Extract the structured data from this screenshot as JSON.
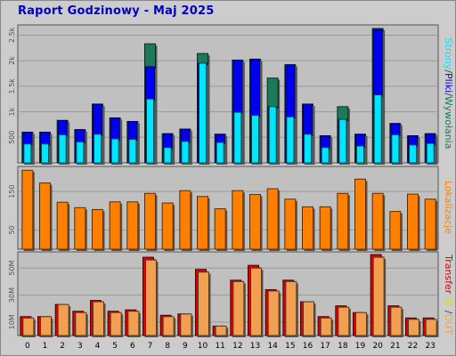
{
  "title": "Raport Godzinowy -  Maj 2025",
  "colors": {
    "pages": "#1a7a5a",
    "files": "#0000ee",
    "hits": "#00e5ff",
    "sites": "#ff8000",
    "in": "#dd0000",
    "out": "#f0a050",
    "panel_bg": "#c0c0c0",
    "frame_bg": "#cccccc"
  },
  "chart_data": [
    {
      "type": "bar",
      "panel": "hits",
      "categories": [
        "0",
        "1",
        "2",
        "3",
        "4",
        "5",
        "6",
        "7",
        "8",
        "9",
        "10",
        "11",
        "12",
        "13",
        "14",
        "15",
        "16",
        "17",
        "18",
        "19",
        "20",
        "21",
        "22",
        "23"
      ],
      "ylim": [
        0,
        2700
      ],
      "yticks": [
        "500",
        "1k",
        "1.5k",
        "2k",
        "2.5k"
      ],
      "ytick_values": [
        500,
        1000,
        1500,
        2000,
        2500
      ],
      "ylabel_parts": [
        "Strony",
        "/",
        "Pliki",
        "/",
        "Wywołania"
      ],
      "series": [
        {
          "name": "Strony",
          "values": [
            600,
            600,
            830,
            650,
            1150,
            880,
            810,
            2330,
            570,
            660,
            2140,
            560,
            2010,
            2030,
            1660,
            1920,
            1150,
            530,
            1100,
            560,
            2630,
            770,
            530,
            570
          ]
        },
        {
          "name": "Pliki",
          "values": [
            600,
            600,
            830,
            650,
            1150,
            880,
            810,
            1880,
            570,
            660,
            1950,
            560,
            2010,
            2030,
            1100,
            1920,
            1150,
            530,
            850,
            560,
            2610,
            770,
            530,
            570
          ]
        },
        {
          "name": "Wywołania",
          "values": [
            370,
            370,
            550,
            410,
            560,
            470,
            460,
            1250,
            300,
            420,
            1950,
            400,
            990,
            930,
            1100,
            900,
            560,
            300,
            850,
            330,
            1330,
            550,
            350,
            380
          ]
        }
      ]
    },
    {
      "type": "bar",
      "panel": "sites",
      "categories": [
        "0",
        "1",
        "2",
        "3",
        "4",
        "5",
        "6",
        "7",
        "8",
        "9",
        "10",
        "11",
        "12",
        "13",
        "14",
        "15",
        "16",
        "17",
        "18",
        "19",
        "20",
        "21",
        "22",
        "23"
      ],
      "ylim": [
        0,
        215
      ],
      "yticks": [
        "50",
        "150"
      ],
      "ytick_values": [
        50,
        150
      ],
      "ylabel": "Lokalizacje",
      "series": [
        {
          "name": "Lokalizacje",
          "values": [
            205,
            172,
            122,
            108,
            103,
            123,
            123,
            145,
            120,
            152,
            137,
            105,
            152,
            142,
            157,
            130,
            110,
            110,
            145,
            182,
            145,
            98,
            143,
            130
          ]
        }
      ]
    },
    {
      "type": "bar",
      "panel": "transfer",
      "categories": [
        "0",
        "1",
        "2",
        "3",
        "4",
        "5",
        "6",
        "7",
        "8",
        "9",
        "10",
        "11",
        "12",
        "13",
        "14",
        "15",
        "16",
        "17",
        "18",
        "19",
        "20",
        "21",
        "22",
        "23"
      ],
      "ylim": [
        0,
        62
      ],
      "yticks": [
        "10M",
        "30M",
        "50M"
      ],
      "ytick_values": [
        10,
        30,
        50
      ],
      "ylabel_parts": [
        "Transfer",
        " IN",
        " /",
        "OUT"
      ],
      "series": [
        {
          "name": "IN",
          "values": [
            14,
            14,
            23,
            18,
            26,
            18,
            19,
            58,
            15,
            16,
            49,
            7,
            41,
            52,
            34,
            41,
            25,
            14,
            22,
            17,
            60,
            22,
            13,
            13
          ]
        },
        {
          "name": "OUT",
          "values": [
            13,
            14,
            23,
            17,
            25,
            17,
            18,
            56,
            14,
            16,
            47,
            7,
            40,
            50,
            33,
            40,
            25,
            13,
            21,
            17,
            58,
            21,
            12,
            12
          ]
        }
      ]
    }
  ]
}
